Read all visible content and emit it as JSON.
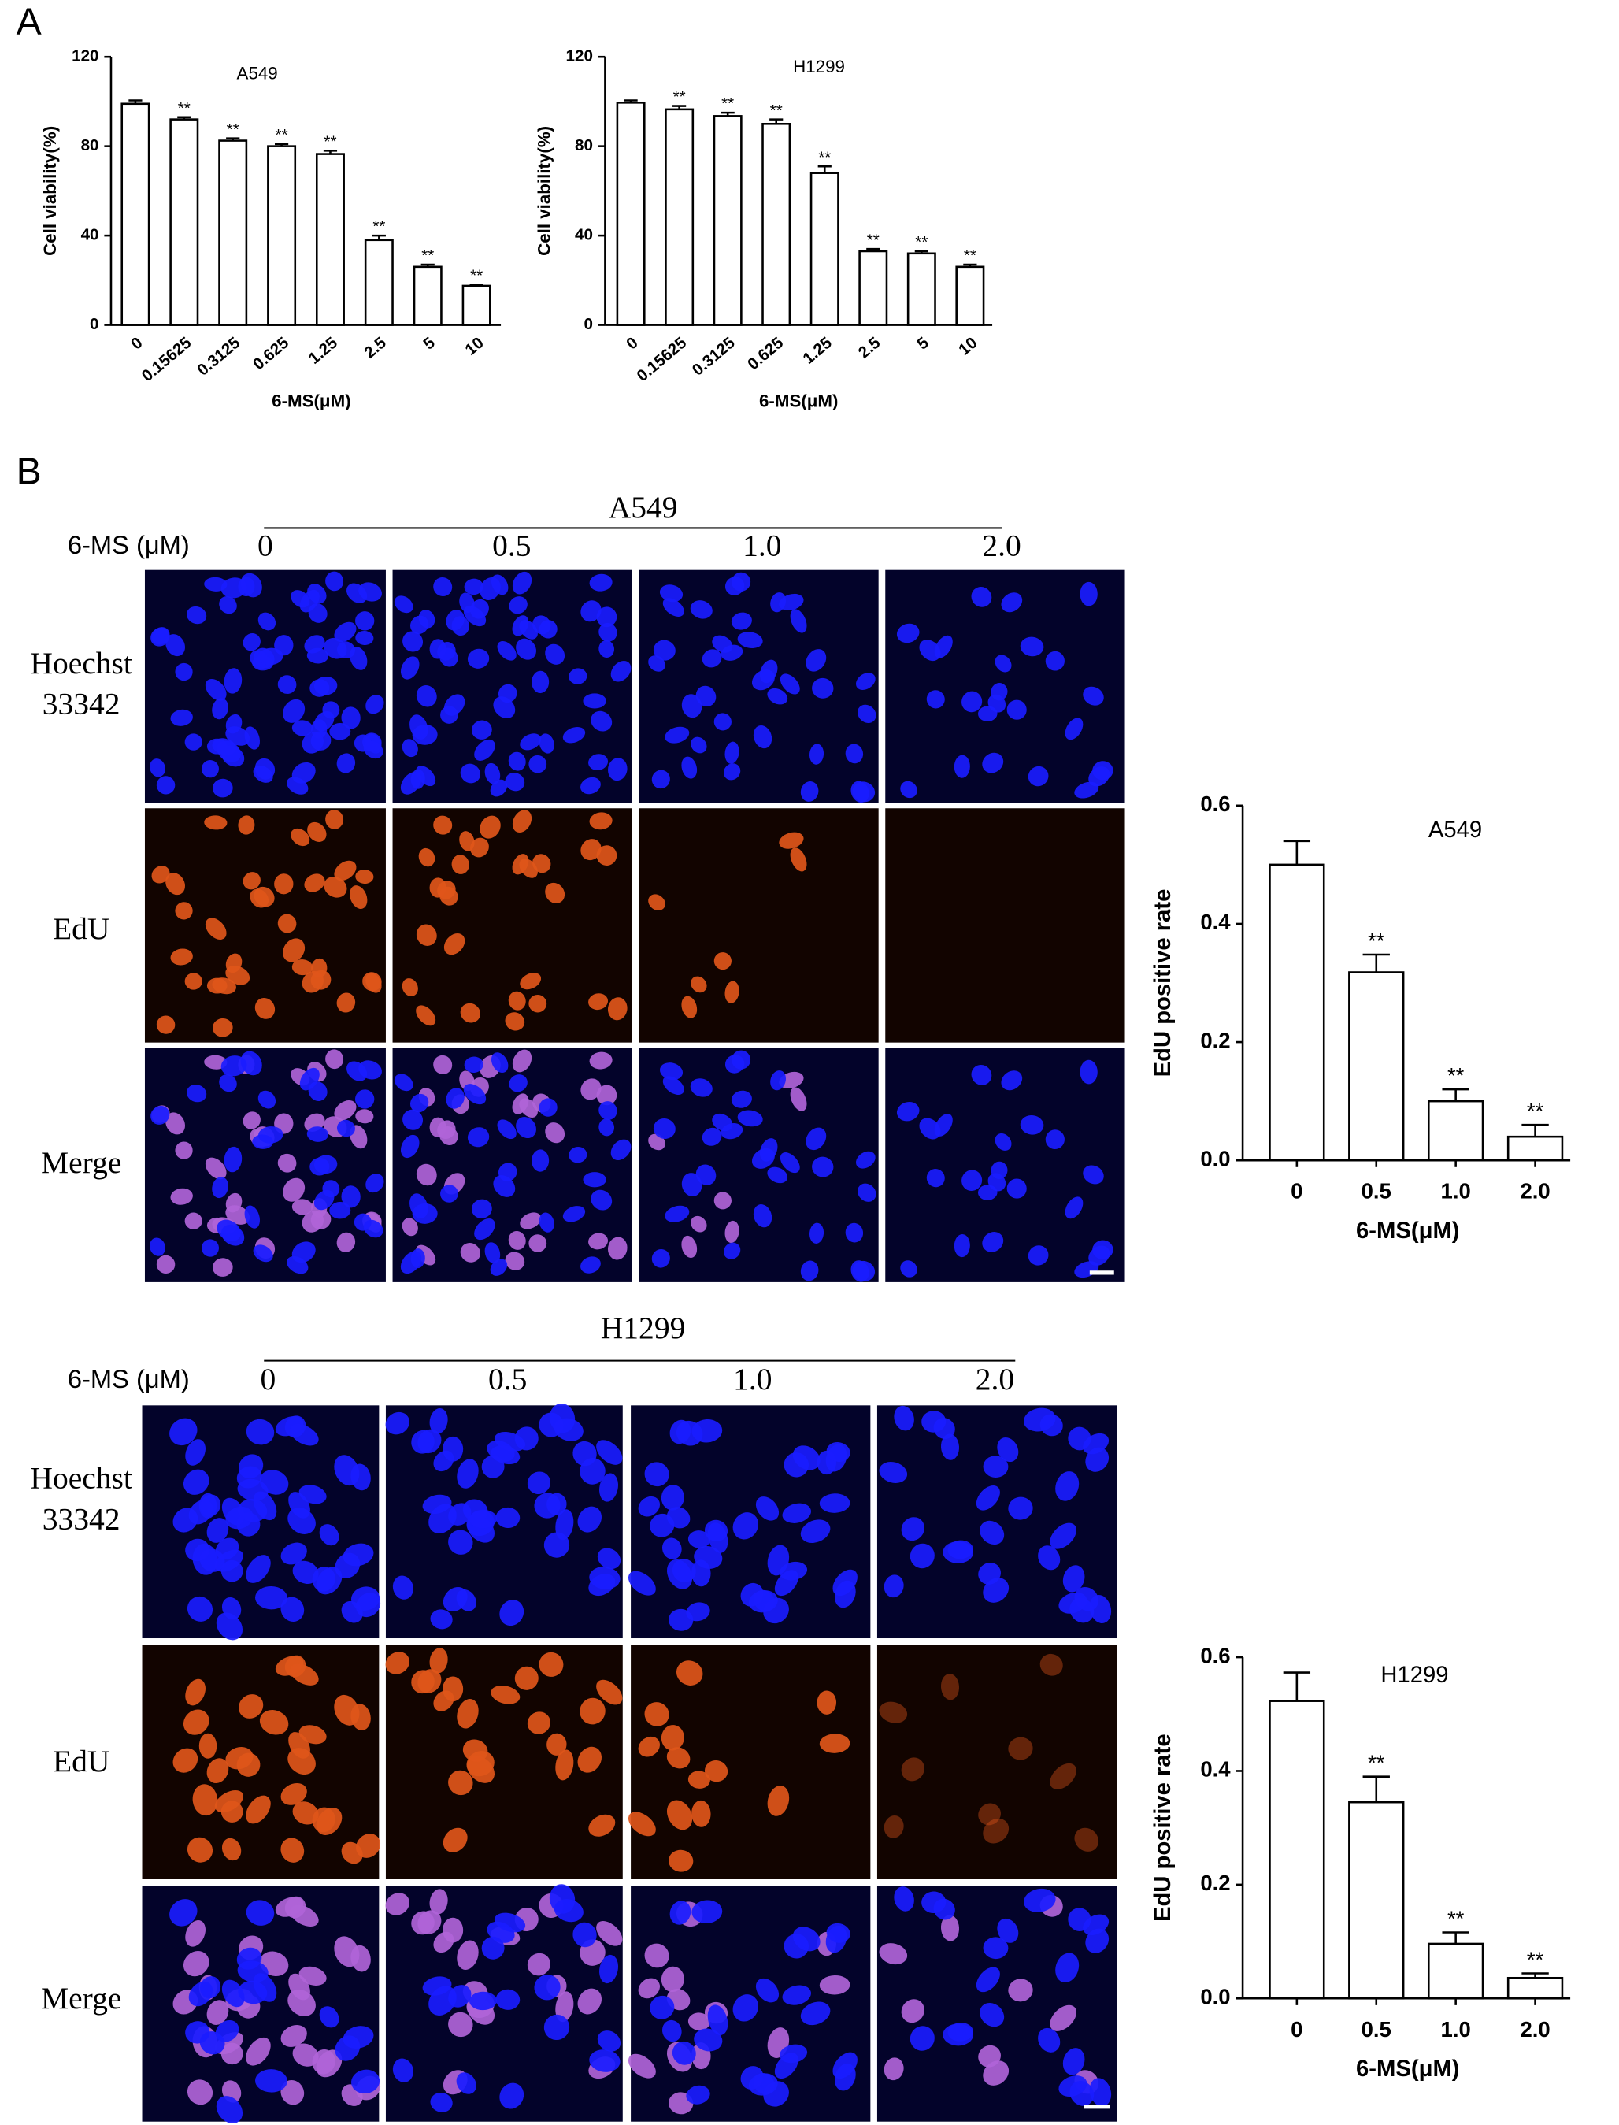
{
  "figure": {
    "panel_a": "A",
    "panel_b": "B",
    "sections": [
      {
        "cell_line": "A549",
        "dose_label": "6-MS (μM)",
        "doses": [
          "0",
          "0.5",
          "1.0",
          "2.0"
        ],
        "rows": [
          [
            "Hoechst",
            "33342"
          ],
          [
            "EdU"
          ],
          [
            "Merge"
          ]
        ]
      },
      {
        "cell_line": "H1299",
        "dose_label": "6-MS (μM)",
        "doses": [
          "0",
          "0.5",
          "1.0",
          "2.0"
        ],
        "rows": [
          [
            "Hoechst",
            "33342"
          ],
          [
            "EdU"
          ],
          [
            "Merge"
          ]
        ]
      }
    ]
  },
  "chart_data": [
    {
      "type": "bar",
      "title": "A549",
      "ylabel": "Cell viability(%)",
      "xlabel": "6-MS(μM)",
      "categories": [
        "0",
        "0.15625",
        "0.3125",
        "0.625",
        "1.25",
        "2.5",
        "5",
        "10"
      ],
      "values": [
        99,
        92,
        82.5,
        80,
        76.5,
        38,
        26,
        17.5
      ],
      "errors": [
        1.5,
        1,
        1,
        1,
        1.5,
        2,
        1,
        0.5
      ],
      "value_annotations": [
        null,
        "**",
        "**",
        "**",
        "**",
        "**",
        "**",
        "**"
      ],
      "color": "#ffffff",
      "ylim": [
        0,
        120
      ],
      "yticks": [
        0,
        40,
        80,
        120
      ]
    },
    {
      "type": "bar",
      "title": "H1299",
      "ylabel": "Cell viability(%)",
      "xlabel": "6-MS(μM)",
      "categories": [
        "0",
        "0.15625",
        "0.3125",
        "0.625",
        "1.25",
        "2.5",
        "5",
        "10"
      ],
      "values": [
        99.5,
        96.5,
        93.5,
        90,
        68,
        33,
        32,
        26
      ],
      "errors": [
        1,
        1.5,
        1.5,
        2,
        3,
        1,
        1,
        1
      ],
      "value_annotations": [
        null,
        "**",
        "**",
        "**",
        "**",
        "**",
        "**",
        "**"
      ],
      "color": "#ffffff",
      "ylim": [
        0,
        120
      ],
      "yticks": [
        0,
        40,
        80,
        120
      ]
    },
    {
      "type": "bar",
      "title": "A549",
      "ylabel": "EdU positive rate",
      "xlabel": "6-MS(μM)",
      "categories": [
        "0",
        "0.5",
        "1.0",
        "2.0"
      ],
      "values": [
        0.5,
        0.318,
        0.1,
        0.04
      ],
      "errors": [
        0.04,
        0.03,
        0.02,
        0.02
      ],
      "value_annotations": [
        null,
        "**",
        "**",
        "**"
      ],
      "color": "#ffffff",
      "ylim": [
        0,
        0.6
      ],
      "yticks": [
        {
          "value": 0,
          "label": "0.0"
        },
        0.2,
        0.4,
        0.6
      ]
    },
    {
      "type": "bar",
      "title": "H1299",
      "ylabel": "EdU positive rate",
      "xlabel": "6-MS(μM)",
      "categories": [
        "0",
        "0.5",
        "1.0",
        "2.0"
      ],
      "values": [
        0.523,
        0.345,
        0.096,
        0.036
      ],
      "errors": [
        0.05,
        0.045,
        0.02,
        0.008
      ],
      "value_annotations": [
        null,
        "**",
        "**",
        "**"
      ],
      "color": "#ffffff",
      "ylim": [
        0,
        0.6
      ],
      "yticks": [
        {
          "value": 0,
          "label": "0.0"
        },
        0.2,
        0.4,
        0.6
      ]
    }
  ]
}
